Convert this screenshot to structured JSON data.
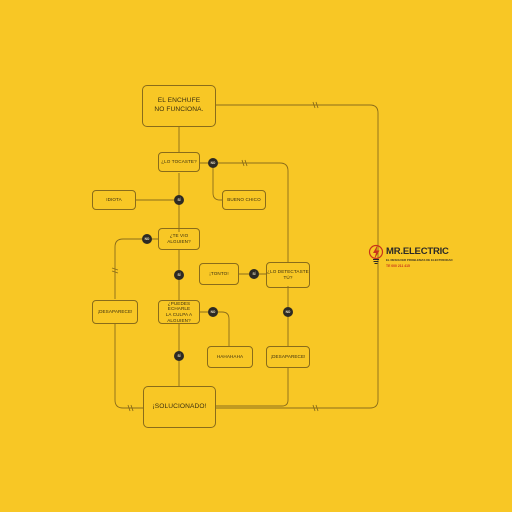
{
  "nodes": {
    "enchufe": "EL ENCHUFE\nNO FUNCIONA.",
    "tocaste": "¿LO TOCASTE?",
    "idiota": "IDIOTA",
    "bueno_chico": "BUENO CHICO",
    "te_vio": "¿TE VIO ALGUIEN?",
    "tonto": "¡TONTO!",
    "detectaste": "¿LO DETECTASTE\nTÚ?",
    "desaparece_left": "¡DESAPARECE!",
    "echarle_culpa": "¿PUEDES ECHARLE\nLA CULPA A ALGUIEN?",
    "hahahaha": "HAHAHAHA",
    "desaparece_right": "¡DESAPARECE!",
    "solucionado": "¡SOLUCIONADO!"
  },
  "badges": {
    "no_1": "NO",
    "si_1": "SÍ",
    "no_2": "NO",
    "si_2": "SÍ",
    "si_3": "SÍ",
    "no_3": "NO",
    "no_4": "NO",
    "si_4": "SÍ"
  },
  "brand": {
    "name": "MR.ELECTRIC",
    "tagline": "EL RESOLVER PROBLEMAS DE ELECTRICIDAD",
    "phone": "TE 000 211 415"
  },
  "colors": {
    "background": "#F8C725",
    "line": "#8a6c1a",
    "badge": "#2d2a24",
    "accent_red": "#c8341c"
  }
}
